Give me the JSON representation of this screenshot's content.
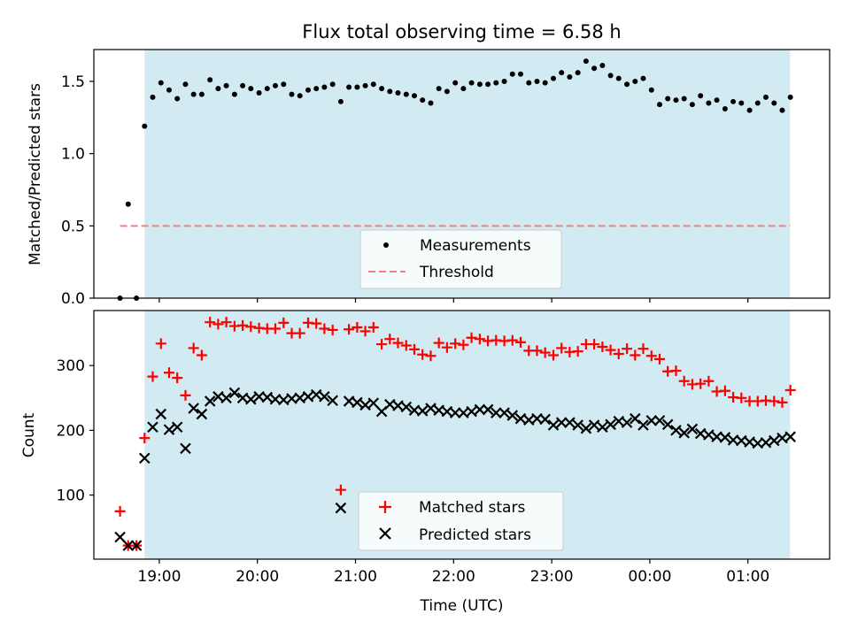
{
  "title": "Flux total observing time = 6.58 h",
  "colors": {
    "shade": "#add8e6",
    "measurement": "#000000",
    "threshold": "#f08080",
    "matched": "#ff0000",
    "predicted": "#000000"
  },
  "chart_data": [
    {
      "type": "scatter",
      "name": "ratio-panel",
      "ylabel": "Matched/Predicted stars",
      "xlabel": "",
      "xlim": [
        18.333,
        25.833
      ],
      "ylim": [
        0,
        1.72
      ],
      "yticks": [
        0.0,
        0.5,
        1.0,
        1.5
      ],
      "ytick_labels": [
        "0.0",
        "0.5",
        "1.0",
        "1.5"
      ],
      "xticks": [
        19,
        20,
        21,
        22,
        23,
        24,
        25
      ],
      "shaded_interval": [
        18.85,
        25.43
      ],
      "threshold": {
        "value": 0.5,
        "x_range": [
          18.6,
          25.43
        ],
        "label": "Threshold"
      },
      "legend": {
        "position": "lower-center",
        "entries": [
          "Measurements",
          "Threshold"
        ]
      },
      "series": [
        {
          "name": "Measurements",
          "x": [
            18.6,
            18.683,
            18.767,
            18.85,
            18.933,
            19.017,
            19.1,
            19.183,
            19.267,
            19.35,
            19.433,
            19.517,
            19.6,
            19.683,
            19.767,
            19.85,
            19.933,
            20.017,
            20.1,
            20.183,
            20.267,
            20.35,
            20.433,
            20.517,
            20.6,
            20.683,
            20.767,
            20.85,
            20.933,
            21.017,
            21.1,
            21.183,
            21.267,
            21.35,
            21.433,
            21.517,
            21.6,
            21.683,
            21.767,
            21.85,
            21.933,
            22.017,
            22.1,
            22.183,
            22.267,
            22.35,
            22.433,
            22.517,
            22.6,
            22.683,
            22.767,
            22.85,
            22.933,
            23.017,
            23.1,
            23.183,
            23.267,
            23.35,
            23.433,
            23.517,
            23.6,
            23.683,
            23.767,
            23.85,
            23.933,
            24.017,
            24.1,
            24.183,
            24.267,
            24.35,
            24.433,
            24.517,
            24.6,
            24.683,
            24.767,
            24.85,
            24.933,
            25.017,
            25.1,
            25.183,
            25.267,
            25.35,
            25.433
          ],
          "y": [
            0.0,
            0.65,
            0.0,
            1.19,
            1.39,
            1.49,
            1.44,
            1.38,
            1.48,
            1.41,
            1.41,
            1.51,
            1.45,
            1.47,
            1.41,
            1.47,
            1.45,
            1.42,
            1.45,
            1.47,
            1.48,
            1.41,
            1.4,
            1.44,
            1.45,
            1.46,
            1.48,
            1.36,
            1.46,
            1.46,
            1.47,
            1.48,
            1.45,
            1.43,
            1.42,
            1.41,
            1.4,
            1.37,
            1.35,
            1.45,
            1.43,
            1.49,
            1.45,
            1.49,
            1.48,
            1.48,
            1.49,
            1.5,
            1.55,
            1.55,
            1.49,
            1.5,
            1.49,
            1.52,
            1.56,
            1.53,
            1.56,
            1.64,
            1.59,
            1.61,
            1.54,
            1.52,
            1.48,
            1.5,
            1.52,
            1.44,
            1.34,
            1.38,
            1.37,
            1.38,
            1.34,
            1.4,
            1.35,
            1.37,
            1.31,
            1.36,
            1.35,
            1.3,
            1.35,
            1.39,
            1.35,
            1.3,
            1.39
          ]
        }
      ]
    },
    {
      "type": "scatter",
      "name": "count-panel",
      "ylabel": "Count",
      "xlabel": "Time (UTC)",
      "xlim": [
        18.333,
        25.833
      ],
      "ylim": [
        1,
        385
      ],
      "yticks": [
        100,
        200,
        300
      ],
      "ytick_labels": [
        "100",
        "200",
        "300"
      ],
      "xticks": [
        19,
        20,
        21,
        22,
        23,
        24,
        25
      ],
      "xtick_labels": [
        "19:00",
        "20:00",
        "21:00",
        "22:00",
        "23:00",
        "00:00",
        "01:00"
      ],
      "shaded_interval": [
        18.85,
        25.43
      ],
      "legend": {
        "position": "lower-center",
        "entries": [
          "Matched stars",
          "Predicted stars"
        ]
      },
      "series": [
        {
          "name": "Matched stars",
          "marker": "+",
          "x": [
            18.6,
            18.683,
            18.767,
            18.85,
            18.933,
            19.017,
            19.1,
            19.183,
            19.267,
            19.35,
            19.433,
            19.517,
            19.6,
            19.683,
            19.767,
            19.85,
            19.933,
            20.017,
            20.1,
            20.183,
            20.267,
            20.35,
            20.433,
            20.517,
            20.6,
            20.683,
            20.767,
            20.85,
            20.933,
            21.017,
            21.1,
            21.183,
            21.267,
            21.35,
            21.433,
            21.517,
            21.6,
            21.683,
            21.767,
            21.85,
            21.933,
            22.017,
            22.1,
            22.183,
            22.267,
            22.35,
            22.433,
            22.517,
            22.6,
            22.683,
            22.767,
            22.85,
            22.933,
            23.017,
            23.1,
            23.183,
            23.267,
            23.35,
            23.433,
            23.517,
            23.6,
            23.683,
            23.767,
            23.85,
            23.933,
            24.017,
            24.1,
            24.183,
            24.267,
            24.35,
            24.433,
            24.517,
            24.6,
            24.683,
            24.767,
            24.85,
            24.933,
            25.017,
            25.1,
            25.183,
            25.267,
            25.35,
            25.433
          ],
          "y": [
            75,
            22,
            22,
            188,
            283,
            334,
            289,
            281,
            254,
            327,
            316,
            367,
            364,
            367,
            361,
            362,
            360,
            358,
            357,
            357,
            366,
            350,
            350,
            366,
            365,
            357,
            355,
            108,
            356,
            359,
            353,
            359,
            333,
            341,
            335,
            331,
            325,
            317,
            315,
            335,
            328,
            334,
            332,
            343,
            341,
            338,
            339,
            338,
            339,
            336,
            323,
            323,
            320,
            316,
            327,
            321,
            322,
            333,
            333,
            329,
            324,
            318,
            326,
            316,
            326,
            315,
            310,
            291,
            292,
            276,
            271,
            272,
            276,
            260,
            261,
            251,
            250,
            245,
            245,
            246,
            245,
            243,
            262
          ]
        },
        {
          "name": "Predicted stars",
          "marker": "x",
          "x": [
            18.6,
            18.683,
            18.767,
            18.85,
            18.933,
            19.017,
            19.1,
            19.183,
            19.267,
            19.35,
            19.433,
            19.517,
            19.6,
            19.683,
            19.767,
            19.85,
            19.933,
            20.017,
            20.1,
            20.183,
            20.267,
            20.35,
            20.433,
            20.517,
            20.6,
            20.683,
            20.767,
            20.85,
            20.933,
            21.017,
            21.1,
            21.183,
            21.267,
            21.35,
            21.433,
            21.517,
            21.6,
            21.683,
            21.767,
            21.85,
            21.933,
            22.017,
            22.1,
            22.183,
            22.267,
            22.35,
            22.433,
            22.517,
            22.6,
            22.683,
            22.767,
            22.85,
            22.933,
            23.017,
            23.1,
            23.183,
            23.267,
            23.35,
            23.433,
            23.517,
            23.6,
            23.683,
            23.767,
            23.85,
            23.933,
            24.017,
            24.1,
            24.183,
            24.267,
            24.35,
            24.433,
            24.517,
            24.6,
            24.683,
            24.767,
            24.85,
            24.933,
            25.017,
            25.1,
            25.183,
            25.267,
            25.35,
            25.433
          ],
          "y": [
            35,
            22,
            22,
            157,
            205,
            225,
            201,
            205,
            172,
            234,
            225,
            245,
            252,
            250,
            258,
            250,
            248,
            252,
            251,
            248,
            247,
            249,
            250,
            252,
            255,
            252,
            246,
            80,
            245,
            243,
            239,
            242,
            229,
            240,
            238,
            236,
            231,
            230,
            234,
            231,
            229,
            227,
            227,
            229,
            232,
            232,
            227,
            227,
            223,
            218,
            216,
            218,
            217,
            208,
            212,
            212,
            208,
            203,
            208,
            205,
            209,
            214,
            212,
            218,
            208,
            215,
            215,
            209,
            200,
            196,
            202,
            195,
            193,
            190,
            189,
            185,
            184,
            182,
            180,
            181,
            184,
            188,
            190
          ]
        }
      ]
    }
  ]
}
